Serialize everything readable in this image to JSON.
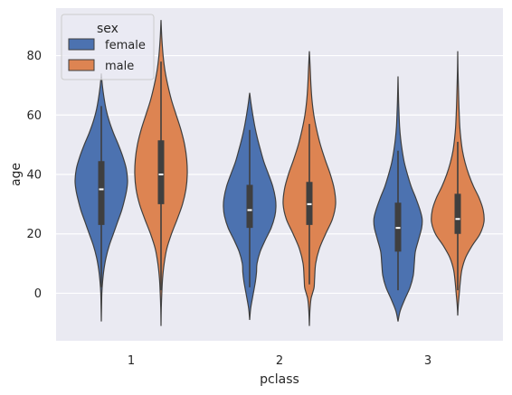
{
  "chart_data": {
    "type": "violin",
    "xlabel": "pclass",
    "ylabel": "age",
    "categories": [
      "1",
      "2",
      "3"
    ],
    "y_ticks": [
      0,
      20,
      40,
      60,
      80
    ],
    "ylim": [
      -16,
      96
    ],
    "grid": true,
    "legend": {
      "title": "sex",
      "placement": "top-left",
      "entries": [
        {
          "label": "female",
          "color": "#4c72b0"
        },
        {
          "label": "male",
          "color": "#dd8452"
        }
      ]
    },
    "series": [
      {
        "name": "female",
        "color": "#4c72b0",
        "violins": [
          {
            "category": "1",
            "whisker": [
              2,
              63
            ],
            "q1": 23,
            "median": 35,
            "q3": 44.5,
            "extent": [
              -9.5,
              74
            ],
            "profile": [
              [
                -9.5,
                0
              ],
              [
                -4,
                0.01
              ],
              [
                0,
                0.02
              ],
              [
                4,
                0.05
              ],
              [
                8,
                0.1
              ],
              [
                12,
                0.18
              ],
              [
                16,
                0.3
              ],
              [
                20,
                0.46
              ],
              [
                24,
                0.62
              ],
              [
                28,
                0.78
              ],
              [
                32,
                0.9
              ],
              [
                35,
                0.97
              ],
              [
                38,
                1.0
              ],
              [
                42,
                0.95
              ],
              [
                46,
                0.82
              ],
              [
                50,
                0.65
              ],
              [
                54,
                0.46
              ],
              [
                58,
                0.3
              ],
              [
                62,
                0.18
              ],
              [
                66,
                0.1
              ],
              [
                70,
                0.04
              ],
              [
                74,
                0
              ]
            ]
          },
          {
            "category": "2",
            "whisker": [
              2,
              55
            ],
            "q1": 22,
            "median": 28,
            "q3": 36.5,
            "extent": [
              -9,
              67.5
            ],
            "profile": [
              [
                -9,
                0
              ],
              [
                -5,
                0.04
              ],
              [
                0,
                0.14
              ],
              [
                4,
                0.22
              ],
              [
                7,
                0.26
              ],
              [
                10,
                0.28
              ],
              [
                14,
                0.4
              ],
              [
                18,
                0.6
              ],
              [
                22,
                0.82
              ],
              [
                26,
                0.96
              ],
              [
                29,
                1.0
              ],
              [
                32,
                0.98
              ],
              [
                36,
                0.88
              ],
              [
                40,
                0.72
              ],
              [
                44,
                0.55
              ],
              [
                48,
                0.42
              ],
              [
                52,
                0.3
              ],
              [
                56,
                0.2
              ],
              [
                60,
                0.12
              ],
              [
                64,
                0.05
              ],
              [
                67.5,
                0
              ]
            ]
          },
          {
            "category": "3",
            "whisker": [
              1,
              48
            ],
            "q1": 14,
            "median": 22,
            "q3": 30.5,
            "extent": [
              -9.5,
              73
            ],
            "profile": [
              [
                -9.5,
                0
              ],
              [
                -6,
                0.08
              ],
              [
                -2,
                0.26
              ],
              [
                2,
                0.46
              ],
              [
                6,
                0.58
              ],
              [
                10,
                0.62
              ],
              [
                14,
                0.66
              ],
              [
                18,
                0.78
              ],
              [
                22,
                0.9
              ],
              [
                25,
                0.92
              ],
              [
                28,
                0.84
              ],
              [
                32,
                0.68
              ],
              [
                36,
                0.5
              ],
              [
                40,
                0.36
              ],
              [
                44,
                0.24
              ],
              [
                48,
                0.16
              ],
              [
                52,
                0.1
              ],
              [
                56,
                0.06
              ],
              [
                60,
                0.04
              ],
              [
                65,
                0.02
              ],
              [
                73,
                0
              ]
            ]
          }
        ]
      },
      {
        "name": "male",
        "color": "#dd8452",
        "violins": [
          {
            "category": "1",
            "whisker": [
              1,
              78
            ],
            "q1": 30,
            "median": 40,
            "q3": 51.5,
            "extent": [
              -11,
              92
            ],
            "profile": [
              [
                -11,
                0
              ],
              [
                -5,
                0.01
              ],
              [
                0,
                0.03
              ],
              [
                5,
                0.06
              ],
              [
                10,
                0.12
              ],
              [
                15,
                0.22
              ],
              [
                20,
                0.4
              ],
              [
                25,
                0.62
              ],
              [
                30,
                0.82
              ],
              [
                35,
                0.95
              ],
              [
                40,
                1.0
              ],
              [
                45,
                0.98
              ],
              [
                50,
                0.9
              ],
              [
                55,
                0.76
              ],
              [
                60,
                0.58
              ],
              [
                65,
                0.4
              ],
              [
                70,
                0.26
              ],
              [
                75,
                0.15
              ],
              [
                80,
                0.08
              ],
              [
                86,
                0.03
              ],
              [
                92,
                0
              ]
            ]
          },
          {
            "category": "2",
            "whisker": [
              3,
              57
            ],
            "q1": 23,
            "median": 30,
            "q3": 37.5,
            "extent": [
              -11,
              81.5
            ],
            "profile": [
              [
                -11,
                0
              ],
              [
                -6,
                0.02
              ],
              [
                -2,
                0.06
              ],
              [
                0,
                0.12
              ],
              [
                2,
                0.18
              ],
              [
                5,
                0.2
              ],
              [
                10,
                0.24
              ],
              [
                15,
                0.38
              ],
              [
                20,
                0.62
              ],
              [
                25,
                0.88
              ],
              [
                30,
                1.0
              ],
              [
                35,
                0.95
              ],
              [
                40,
                0.8
              ],
              [
                45,
                0.6
              ],
              [
                50,
                0.42
              ],
              [
                55,
                0.28
              ],
              [
                60,
                0.17
              ],
              [
                65,
                0.1
              ],
              [
                70,
                0.06
              ],
              [
                76,
                0.03
              ],
              [
                81.5,
                0
              ]
            ]
          },
          {
            "category": "3",
            "whisker": [
              1,
              51
            ],
            "q1": 20,
            "median": 25,
            "q3": 33.5,
            "extent": [
              -7.5,
              81.5
            ],
            "profile": [
              [
                -7.5,
                0
              ],
              [
                -4,
                0.02
              ],
              [
                0,
                0.06
              ],
              [
                4,
                0.1
              ],
              [
                8,
                0.16
              ],
              [
                12,
                0.3
              ],
              [
                16,
                0.55
              ],
              [
                20,
                0.85
              ],
              [
                24,
                1.0
              ],
              [
                28,
                0.97
              ],
              [
                32,
                0.82
              ],
              [
                36,
                0.6
              ],
              [
                40,
                0.42
              ],
              [
                44,
                0.28
              ],
              [
                48,
                0.18
              ],
              [
                52,
                0.12
              ],
              [
                56,
                0.08
              ],
              [
                62,
                0.05
              ],
              [
                68,
                0.03
              ],
              [
                75,
                0.01
              ],
              [
                81.5,
                0
              ]
            ]
          }
        ]
      }
    ]
  }
}
